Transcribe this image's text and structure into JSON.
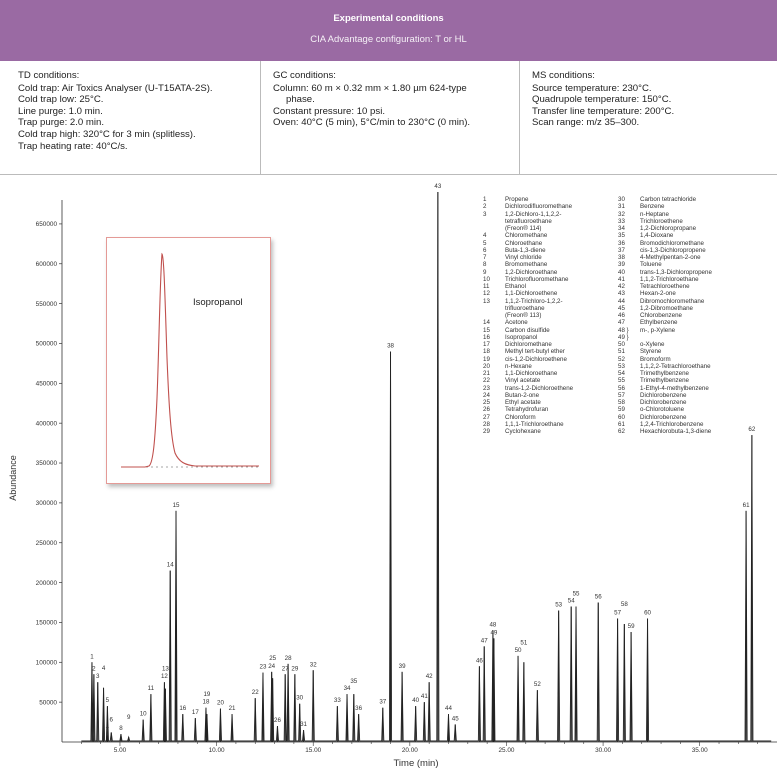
{
  "header": {
    "title": "Experimental conditions",
    "subtitle": "CIA Advantage configuration: T or HL"
  },
  "conditions": {
    "td": {
      "title": "TD conditions:",
      "lines": [
        "Cold trap: Air Toxics Analyser (U-T15ATA-2S).",
        "Cold trap low: 25°C.",
        "Line purge: 1.0 min.",
        "Trap purge: 2.0 min.",
        "Cold trap high: 320°C for 3 min (splitless).",
        "Trap heating rate: 40°C/s."
      ]
    },
    "gc": {
      "title": "GC conditions:",
      "lines": [
        "Column: 60 m × 0.32 mm × 1.80 µm 624-type",
        "   phase.",
        "Constant pressure: 10 psi.",
        "Oven: 40°C (5 min), 5°C/min to 230°C (0 min)."
      ]
    },
    "ms": {
      "title": "MS conditions:",
      "lines": [
        "Source temperature: 230°C.",
        "Quadrupole temperature: 150°C.",
        "Transfer line temperature: 200°C.",
        "Scan range: m/z 35–300."
      ]
    }
  },
  "inset": {
    "label": "Isopropanol"
  },
  "chart_data": {
    "type": "line",
    "xlabel": "Time (min)",
    "ylabel": "Abundance",
    "xlim": [
      2,
      39
    ],
    "ylim": [
      0,
      680000
    ],
    "x_ticks": [
      "5.00",
      "10.00",
      "15.00",
      "20.00",
      "25.00",
      "30.00",
      "35.00"
    ],
    "x_tick_values": [
      5,
      10,
      15,
      20,
      25,
      30,
      35
    ],
    "y_ticks": [
      "50000",
      "100000",
      "150000",
      "200000",
      "250000",
      "300000",
      "350000",
      "400000",
      "450000",
      "500000",
      "550000",
      "600000",
      "650000"
    ],
    "y_tick_values": [
      50000,
      100000,
      150000,
      200000,
      250000,
      300000,
      350000,
      400000,
      450000,
      500000,
      550000,
      600000,
      650000
    ],
    "peaks": [
      {
        "label": "1",
        "x": 3.55,
        "y": 100000
      },
      {
        "label": "2",
        "x": 3.65,
        "y": 85000
      },
      {
        "label": "3",
        "x": 3.85,
        "y": 75000
      },
      {
        "label": "4",
        "x": 4.15,
        "y": 68000
      },
      {
        "label": "5",
        "x": 4.35,
        "y": 45000
      },
      {
        "label": "6",
        "x": 4.55,
        "y": 12000
      },
      {
        "label": "7",
        "x": 4.35,
        "y": 8000
      },
      {
        "label": "8",
        "x": 5.05,
        "y": 10000
      },
      {
        "label": "9",
        "x": 5.45,
        "y": 6000
      },
      {
        "label": "10",
        "x": 6.2,
        "y": 28000
      },
      {
        "label": "11",
        "x": 6.6,
        "y": 60000
      },
      {
        "label": "12",
        "x": 7.3,
        "y": 75000
      },
      {
        "label": "13",
        "x": 7.35,
        "y": 67000
      },
      {
        "label": "14",
        "x": 7.6,
        "y": 215000
      },
      {
        "label": "15",
        "x": 7.9,
        "y": 290000
      },
      {
        "label": "16",
        "x": 8.25,
        "y": 35000
      },
      {
        "label": "17",
        "x": 8.9,
        "y": 30000
      },
      {
        "label": "18",
        "x": 9.45,
        "y": 43000
      },
      {
        "label": "19",
        "x": 9.5,
        "y": 35000
      },
      {
        "label": "20",
        "x": 10.2,
        "y": 42000
      },
      {
        "label": "21",
        "x": 10.8,
        "y": 35000
      },
      {
        "label": "22",
        "x": 12.0,
        "y": 55000
      },
      {
        "label": "23",
        "x": 12.4,
        "y": 87000
      },
      {
        "label": "24",
        "x": 12.85,
        "y": 88000
      },
      {
        "label": "25",
        "x": 12.9,
        "y": 80000
      },
      {
        "label": "26",
        "x": 13.15,
        "y": 20000
      },
      {
        "label": "27",
        "x": 13.55,
        "y": 85000
      },
      {
        "label": "28",
        "x": 13.7,
        "y": 98000
      },
      {
        "label": "29",
        "x": 14.05,
        "y": 85000
      },
      {
        "label": "30",
        "x": 14.3,
        "y": 48000
      },
      {
        "label": "31",
        "x": 14.5,
        "y": 15000
      },
      {
        "label": "32",
        "x": 15.0,
        "y": 90000
      },
      {
        "label": "33",
        "x": 16.25,
        "y": 45000
      },
      {
        "label": "34",
        "x": 16.75,
        "y": 60000
      },
      {
        "label": "35",
        "x": 17.1,
        "y": 60000
      },
      {
        "label": "36",
        "x": 17.35,
        "y": 35000
      },
      {
        "label": "37",
        "x": 18.6,
        "y": 43000
      },
      {
        "label": "38",
        "x": 19.0,
        "y": 490000
      },
      {
        "label": "39",
        "x": 19.6,
        "y": 88000
      },
      {
        "label": "40",
        "x": 20.3,
        "y": 45000
      },
      {
        "label": "41",
        "x": 20.75,
        "y": 50000
      },
      {
        "label": "42",
        "x": 21.0,
        "y": 75000
      },
      {
        "label": "43",
        "x": 21.45,
        "y": 690000
      },
      {
        "label": "44",
        "x": 22.0,
        "y": 35000
      },
      {
        "label": "45",
        "x": 22.35,
        "y": 22000
      },
      {
        "label": "46",
        "x": 23.6,
        "y": 95000
      },
      {
        "label": "47",
        "x": 23.85,
        "y": 120000
      },
      {
        "label": "48",
        "x": 24.3,
        "y": 140000
      },
      {
        "label": "49",
        "x": 24.35,
        "y": 130000
      },
      {
        "label": "50",
        "x": 25.6,
        "y": 108000
      },
      {
        "label": "51",
        "x": 25.9,
        "y": 100000
      },
      {
        "label": "52",
        "x": 26.6,
        "y": 65000
      },
      {
        "label": "53",
        "x": 27.7,
        "y": 165000
      },
      {
        "label": "54",
        "x": 28.35,
        "y": 170000
      },
      {
        "label": "55",
        "x": 28.6,
        "y": 170000
      },
      {
        "label": "56",
        "x": 29.75,
        "y": 175000
      },
      {
        "label": "57",
        "x": 30.75,
        "y": 155000
      },
      {
        "label": "58",
        "x": 31.1,
        "y": 148000
      },
      {
        "label": "59",
        "x": 31.45,
        "y": 138000
      },
      {
        "label": "60",
        "x": 32.3,
        "y": 155000
      },
      {
        "label": "61",
        "x": 37.4,
        "y": 290000
      },
      {
        "label": "62",
        "x": 37.7,
        "y": 385000
      }
    ]
  },
  "legend": {
    "col1": [
      {
        "num": "1",
        "name": "Propene"
      },
      {
        "num": "2",
        "name": "Dichlorodifluoromethane"
      },
      {
        "num": "3",
        "name": "1,2-Dichloro-1,1,2,2-"
      },
      {
        "num": "",
        "name": "tetrafluoroethane"
      },
      {
        "num": "",
        "name": "(Freon® 114)"
      },
      {
        "num": "4",
        "name": "Chloromethane"
      },
      {
        "num": "5",
        "name": "Chloroethane"
      },
      {
        "num": "6",
        "name": "Buta-1,3-diene"
      },
      {
        "num": "7",
        "name": "Vinyl chloride"
      },
      {
        "num": "8",
        "name": "Bromomethane"
      },
      {
        "num": "9",
        "name": "1,2-Dichloroethane"
      },
      {
        "num": "10",
        "name": "Trichlorofluoromethane"
      },
      {
        "num": "11",
        "name": "Ethanol"
      },
      {
        "num": "12",
        "name": "1,1-Dichloroethene"
      },
      {
        "num": "13",
        "name": "1,1,2-Trichloro-1,2,2-"
      },
      {
        "num": "",
        "name": "trifluoroethane"
      },
      {
        "num": "",
        "name": "(Freon® 113)"
      },
      {
        "num": "14",
        "name": "Acetone"
      },
      {
        "num": "15",
        "name": "Carbon disulfide"
      },
      {
        "num": "16",
        "name": "Isopropanol"
      },
      {
        "num": "17",
        "name": "Dichloromethane"
      },
      {
        "num": "18",
        "name": "Methyl tert-butyl ether"
      },
      {
        "num": "19",
        "name": "cis-1,2-Dichloroethene"
      },
      {
        "num": "20",
        "name": "n-Hexane"
      },
      {
        "num": "21",
        "name": "1,1-Dichloroethane"
      },
      {
        "num": "22",
        "name": "Vinyl acetate"
      },
      {
        "num": "23",
        "name": "trans-1,2-Dichloroethene"
      },
      {
        "num": "24",
        "name": "Butan-2-one"
      },
      {
        "num": "25",
        "name": "Ethyl acetate"
      },
      {
        "num": "26",
        "name": "Tetrahydrofuran"
      },
      {
        "num": "27",
        "name": "Chloroform"
      },
      {
        "num": "28",
        "name": "1,1,1-Trichloroethane"
      },
      {
        "num": "29",
        "name": "Cyclohexane"
      }
    ],
    "col2": [
      {
        "num": "30",
        "name": "Carbon tetrachloride"
      },
      {
        "num": "31",
        "name": "Benzene"
      },
      {
        "num": "32",
        "name": "n-Heptane"
      },
      {
        "num": "33",
        "name": "Trichloroethene"
      },
      {
        "num": "34",
        "name": "1,2-Dichloropropane"
      },
      {
        "num": "35",
        "name": "1,4-Dioxane"
      },
      {
        "num": "36",
        "name": "Bromodichloromethane"
      },
      {
        "num": "37",
        "name": "cis-1,3-Dichloropropene"
      },
      {
        "num": "38",
        "name": "4-Methylpentan-2-one"
      },
      {
        "num": "39",
        "name": "Toluene"
      },
      {
        "num": "40",
        "name": "trans-1,3-Dichloropropene"
      },
      {
        "num": "41",
        "name": "1,1,2-Trichloroethane"
      },
      {
        "num": "42",
        "name": "Tetrachloroethene"
      },
      {
        "num": "43",
        "name": "Hexan-2-one"
      },
      {
        "num": "44",
        "name": "Dibromochloromethane"
      },
      {
        "num": "45",
        "name": "1,2-Dibromoethane"
      },
      {
        "num": "46",
        "name": "Chlorobenzene"
      },
      {
        "num": "47",
        "name": "Ethylbenzene"
      },
      {
        "num": "48 }",
        "name": "m-, p-Xylene"
      },
      {
        "num": "49 }",
        "name": ""
      },
      {
        "num": "50",
        "name": "o-Xylene"
      },
      {
        "num": "51",
        "name": "Styrene"
      },
      {
        "num": "52",
        "name": "Bromoform"
      },
      {
        "num": "53",
        "name": "1,1,2,2-Tetrachloroethane"
      },
      {
        "num": "54",
        "name": "Trimethylbenzene"
      },
      {
        "num": "55",
        "name": "Trimethylbenzene"
      },
      {
        "num": "56",
        "name": "1-Ethyl-4-methylbenzene"
      },
      {
        "num": "57",
        "name": "Dichlorobenzene"
      },
      {
        "num": "58",
        "name": "Dichlorobenzene"
      },
      {
        "num": "59",
        "name": "o-Chlorotoluene"
      },
      {
        "num": "60",
        "name": "Dichlorobenzene"
      },
      {
        "num": "61",
        "name": "1,2,4-Trichlorobenzene"
      },
      {
        "num": "62",
        "name": "Hexachlorobuta-1,3-diene"
      }
    ]
  },
  "colors": {
    "banner": "#9a6aa3",
    "trace": "#222222",
    "inset_border": "#e49a96",
    "inset_trace": "#c0504d"
  }
}
